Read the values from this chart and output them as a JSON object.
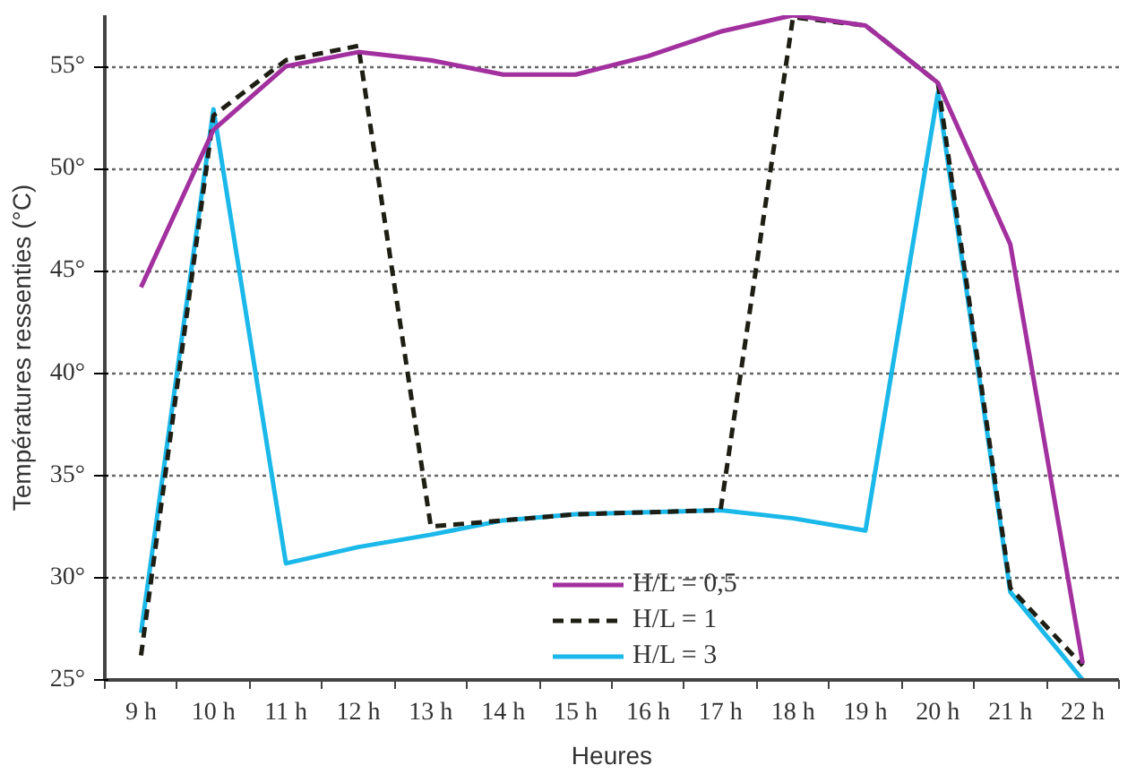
{
  "chart_data": {
    "type": "line",
    "xlabel": "Heures",
    "ylabel": "Températures ressenties (°C)",
    "categories": [
      "9 h",
      "10 h",
      "11 h",
      "12 h",
      "13 h",
      "14 h",
      "15 h",
      "16 h",
      "17 h",
      "18 h",
      "19 h",
      "20 h",
      "21 h",
      "22 h"
    ],
    "series": [
      {
        "name": "H/L = 0,5",
        "color": "#a2309f",
        "line_style": "solid",
        "values": [
          44.2,
          51.9,
          55.0,
          55.7,
          55.3,
          54.6,
          54.6,
          55.5,
          56.7,
          57.5,
          57.0,
          54.2,
          46.3,
          25.8
        ]
      },
      {
        "name": "H/L = 1",
        "color": "#1e1e14",
        "line_style": "dashed",
        "values": [
          26.2,
          52.6,
          55.3,
          56.0,
          32.5,
          32.8,
          33.1,
          33.2,
          33.3,
          57.4,
          57.0,
          54.2,
          29.5,
          25.7
        ]
      },
      {
        "name": "H/L = 3",
        "color": "#1bb8ea",
        "line_style": "solid",
        "values": [
          27.3,
          52.9,
          30.7,
          31.5,
          32.1,
          32.8,
          33.1,
          33.2,
          33.3,
          32.9,
          32.3,
          53.7,
          29.3,
          25.0
        ]
      }
    ],
    "ylim": [
      25,
      57.5
    ],
    "yticks": [
      {
        "value": 25,
        "label": "25°"
      },
      {
        "value": 30,
        "label": "30°"
      },
      {
        "value": 35,
        "label": "35°"
      },
      {
        "value": 40,
        "label": "40°"
      },
      {
        "value": 45,
        "label": "45°"
      },
      {
        "value": 50,
        "label": "50°"
      },
      {
        "value": 55,
        "label": "55°"
      }
    ],
    "grid": "y",
    "legend": "bottom",
    "marker": "none"
  }
}
